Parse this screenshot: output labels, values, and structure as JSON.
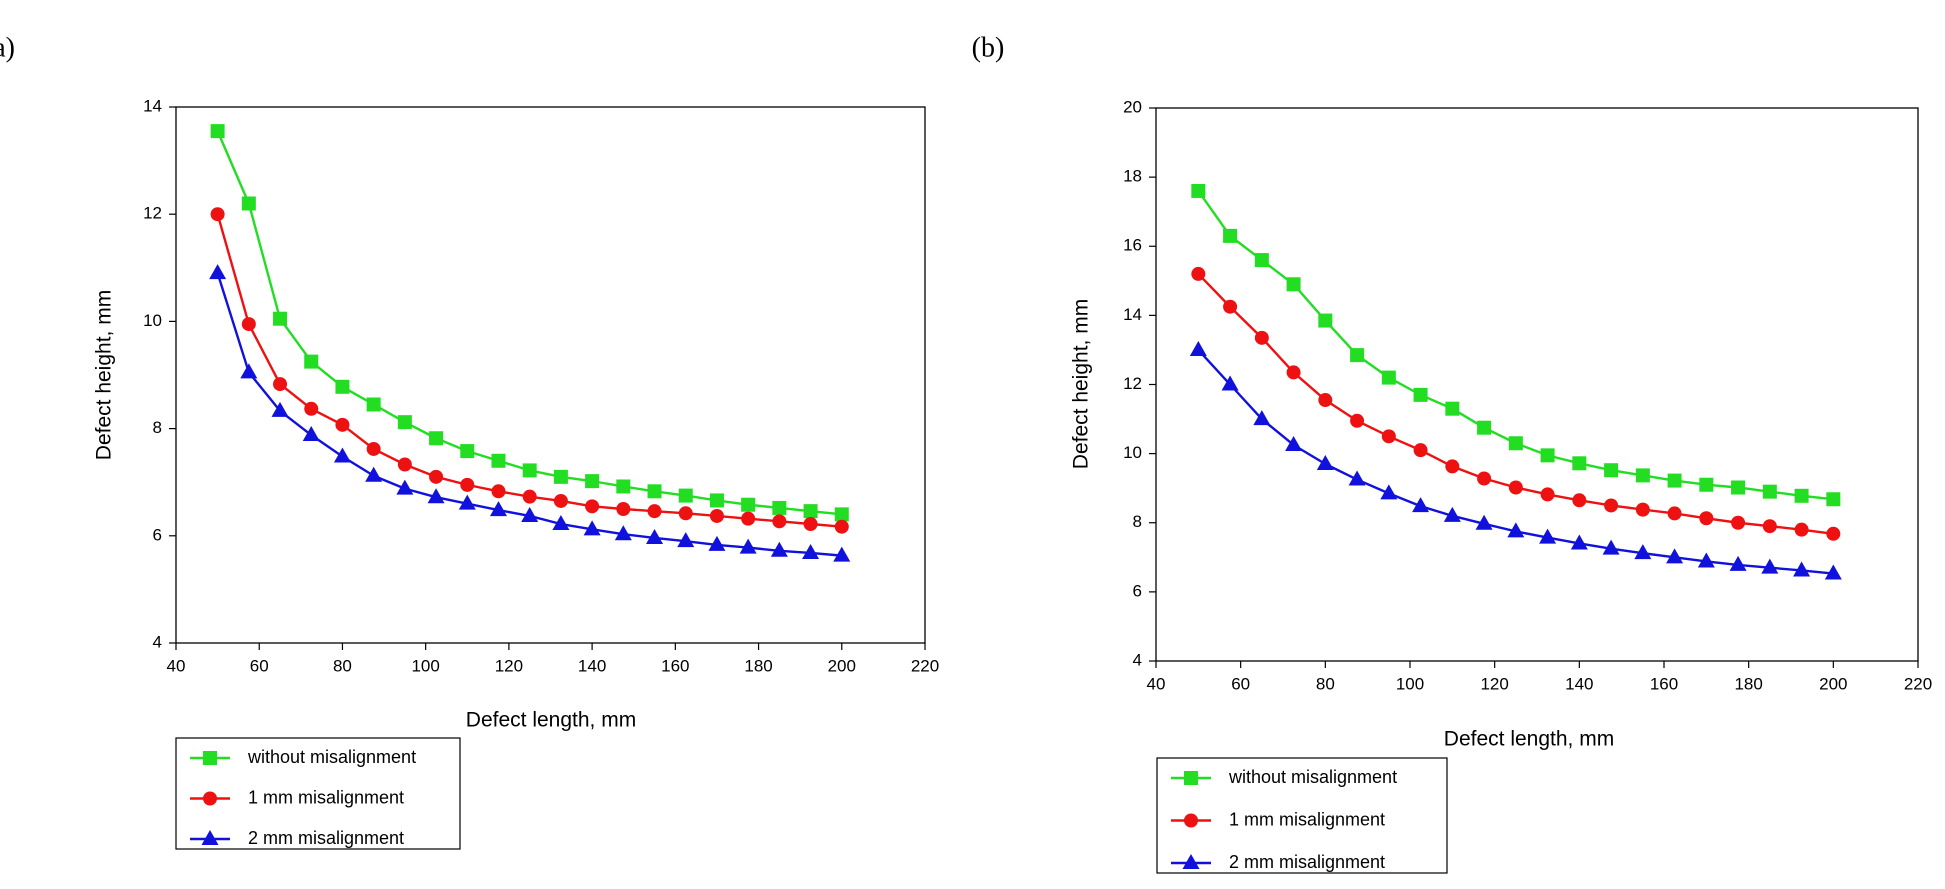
{
  "chart_data": [
    {
      "type": "line",
      "panel_label": "(a)",
      "xlabel": "Defect length, mm",
      "ylabel": "Defect height, mm",
      "x": [
        50,
        57.5,
        65,
        72.5,
        80,
        87.5,
        95,
        102.5,
        110,
        117.5,
        125,
        132.5,
        140,
        147.5,
        155,
        162.5,
        170,
        177.5,
        185,
        192.5,
        200
      ],
      "xlim": [
        40,
        220
      ],
      "xticks": [
        40,
        60,
        80,
        100,
        120,
        140,
        160,
        180,
        200,
        220
      ],
      "ylim": [
        4,
        14
      ],
      "yticks": [
        4,
        6,
        8,
        10,
        12,
        14
      ],
      "series": [
        {
          "name": "without misalignment",
          "color": "#22dd22",
          "marker": "square",
          "values": [
            13.55,
            12.2,
            10.05,
            9.25,
            8.78,
            8.45,
            8.12,
            7.82,
            7.58,
            7.4,
            7.22,
            7.1,
            7.02,
            6.92,
            6.83,
            6.75,
            6.66,
            6.58,
            6.52,
            6.46,
            6.4
          ]
        },
        {
          "name": "1 mm misalignment",
          "color": "#ee1111",
          "marker": "circle",
          "values": [
            12.0,
            9.95,
            8.83,
            8.37,
            8.07,
            7.62,
            7.33,
            7.1,
            6.95,
            6.83,
            6.73,
            6.65,
            6.55,
            6.5,
            6.46,
            6.42,
            6.37,
            6.32,
            6.27,
            6.22,
            6.17
          ]
        },
        {
          "name": "2 mm misalignment",
          "color": "#1111dd",
          "marker": "triangle",
          "values": [
            10.9,
            9.05,
            8.33,
            7.88,
            7.48,
            7.12,
            6.88,
            6.72,
            6.6,
            6.48,
            6.37,
            6.22,
            6.12,
            6.03,
            5.96,
            5.9,
            5.83,
            5.78,
            5.72,
            5.68,
            5.63
          ]
        }
      ]
    },
    {
      "type": "line",
      "panel_label": "(b)",
      "xlabel": "Defect length, mm",
      "ylabel": "Defect height, mm",
      "x": [
        50,
        57.5,
        65,
        72.5,
        80,
        87.5,
        95,
        102.5,
        110,
        117.5,
        125,
        132.5,
        140,
        147.5,
        155,
        162.5,
        170,
        177.5,
        185,
        192.5,
        200
      ],
      "xlim": [
        40,
        220
      ],
      "xticks": [
        40,
        60,
        80,
        100,
        120,
        140,
        160,
        180,
        200,
        220
      ],
      "ylim": [
        4,
        20
      ],
      "yticks": [
        4,
        6,
        8,
        10,
        12,
        14,
        16,
        18,
        20
      ],
      "series": [
        {
          "name": "without misalignment",
          "color": "#22dd22",
          "marker": "square",
          "values": [
            17.6,
            16.3,
            15.6,
            14.9,
            13.85,
            12.85,
            12.2,
            11.7,
            11.3,
            10.75,
            10.3,
            9.95,
            9.72,
            9.52,
            9.37,
            9.22,
            9.1,
            9.02,
            8.9,
            8.78,
            8.68
          ]
        },
        {
          "name": "1 mm misalignment",
          "color": "#ee1111",
          "marker": "circle",
          "values": [
            15.2,
            14.25,
            13.35,
            12.35,
            11.55,
            10.95,
            10.5,
            10.1,
            9.63,
            9.28,
            9.02,
            8.82,
            8.65,
            8.5,
            8.38,
            8.27,
            8.13,
            8.0,
            7.9,
            7.8,
            7.68
          ]
        },
        {
          "name": "2 mm misalignment",
          "color": "#1111dd",
          "marker": "triangle",
          "values": [
            13.0,
            12.0,
            11.0,
            10.25,
            9.7,
            9.25,
            8.85,
            8.48,
            8.2,
            7.97,
            7.75,
            7.57,
            7.4,
            7.25,
            7.12,
            7.0,
            6.88,
            6.78,
            6.7,
            6.62,
            6.53
          ]
        }
      ]
    }
  ]
}
